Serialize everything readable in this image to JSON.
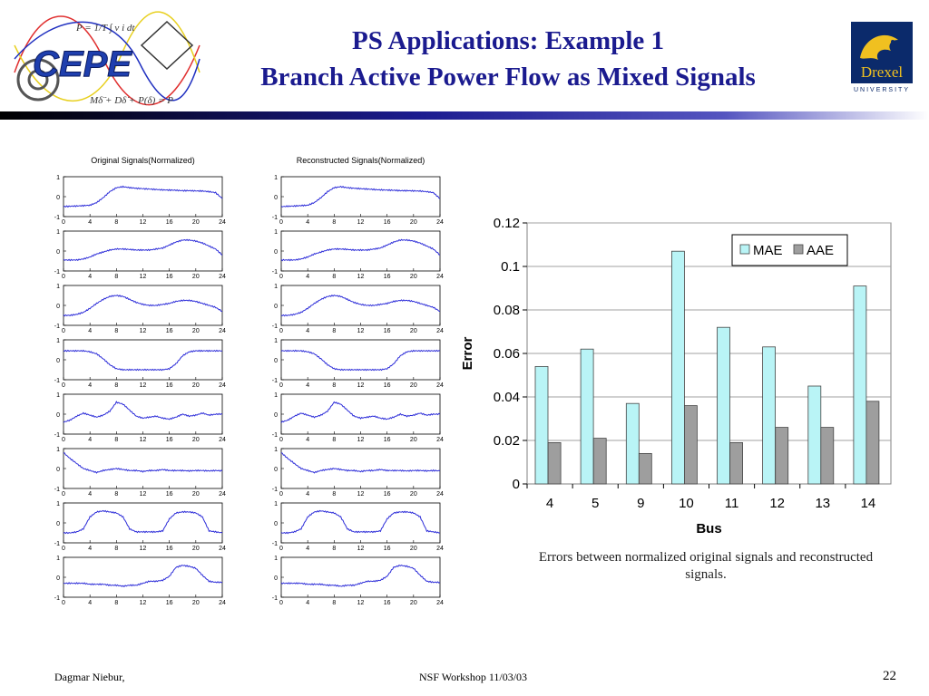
{
  "header": {
    "title_line1": "PS Applications: Example 1",
    "title_line2": "Branch Active Power Flow as Mixed Signals",
    "left_logo": "CEPE",
    "right_logo_name": "Drexel",
    "right_logo_sub": "UNIVERSITY",
    "rule_colors": [
      "#000000",
      "#1b1b8f",
      "#ffffff"
    ]
  },
  "signals": {
    "original_title": "Original Signals(Normalized)",
    "reconstructed_title": "Reconstructed Signals(Normalized)",
    "x_ticks": [
      "0",
      "4",
      "8",
      "12",
      "16",
      "20",
      "24"
    ],
    "y_ticks": [
      "1",
      "0",
      "-1"
    ],
    "line_color": "#2b2bd8",
    "series": [
      [
        -0.5,
        -0.48,
        -0.47,
        -0.45,
        -0.43,
        -0.3,
        -0.05,
        0.25,
        0.45,
        0.5,
        0.45,
        0.42,
        0.4,
        0.38,
        0.36,
        0.34,
        0.33,
        0.32,
        0.3,
        0.3,
        0.29,
        0.28,
        0.25,
        0.2,
        -0.1
      ],
      [
        -0.45,
        -0.45,
        -0.45,
        -0.4,
        -0.3,
        -0.15,
        -0.05,
        0.05,
        0.1,
        0.1,
        0.08,
        0.05,
        0.05,
        0.05,
        0.1,
        0.15,
        0.3,
        0.45,
        0.55,
        0.55,
        0.5,
        0.4,
        0.25,
        0.1,
        -0.2
      ],
      [
        -0.5,
        -0.5,
        -0.45,
        -0.35,
        -0.15,
        0.1,
        0.3,
        0.45,
        0.5,
        0.45,
        0.3,
        0.15,
        0.05,
        0.0,
        0.0,
        0.05,
        0.1,
        0.2,
        0.25,
        0.25,
        0.2,
        0.1,
        0.0,
        -0.1,
        -0.3
      ],
      [
        0.45,
        0.45,
        0.45,
        0.45,
        0.4,
        0.3,
        0.05,
        -0.25,
        -0.45,
        -0.5,
        -0.5,
        -0.5,
        -0.5,
        -0.5,
        -0.5,
        -0.5,
        -0.45,
        -0.2,
        0.2,
        0.4,
        0.45,
        0.45,
        0.45,
        0.45,
        0.45
      ],
      [
        -0.4,
        -0.3,
        -0.1,
        0.05,
        -0.05,
        -0.15,
        -0.05,
        0.15,
        0.6,
        0.5,
        0.2,
        -0.1,
        -0.2,
        -0.15,
        -0.1,
        -0.2,
        -0.25,
        -0.15,
        0.0,
        -0.1,
        -0.05,
        0.05,
        -0.05,
        0.0,
        0.0
      ],
      [
        0.8,
        0.5,
        0.25,
        0.0,
        -0.1,
        -0.2,
        -0.1,
        -0.05,
        0.0,
        -0.05,
        -0.1,
        -0.1,
        -0.15,
        -0.1,
        -0.1,
        -0.05,
        -0.1,
        -0.1,
        -0.1,
        -0.12,
        -0.1,
        -0.1,
        -0.12,
        -0.1,
        -0.12
      ],
      [
        -0.5,
        -0.5,
        -0.45,
        -0.3,
        0.3,
        0.55,
        0.6,
        0.55,
        0.5,
        0.3,
        -0.3,
        -0.45,
        -0.45,
        -0.45,
        -0.45,
        -0.4,
        0.2,
        0.5,
        0.55,
        0.55,
        0.5,
        0.3,
        -0.4,
        -0.45,
        -0.5
      ],
      [
        -0.3,
        -0.3,
        -0.3,
        -0.3,
        -0.35,
        -0.35,
        -0.35,
        -0.4,
        -0.4,
        -0.45,
        -0.4,
        -0.4,
        -0.3,
        -0.2,
        -0.2,
        -0.15,
        0.05,
        0.5,
        0.6,
        0.55,
        0.45,
        0.1,
        -0.2,
        -0.25,
        -0.25
      ]
    ]
  },
  "caption": {
    "line1": "Errors between normalized original signals and reconstructed",
    "line2": "signals."
  },
  "footer": {
    "author": "Dagmar Niebur,",
    "event": "NSF Workshop 11/03/03",
    "page": "22"
  },
  "chart_data": {
    "type": "bar",
    "categories": [
      "4",
      "5",
      "9",
      "10",
      "11",
      "12",
      "13",
      "14"
    ],
    "series": [
      {
        "name": "MAE",
        "values": [
          0.054,
          0.062,
          0.037,
          0.107,
          0.072,
          0.063,
          0.045,
          0.091
        ],
        "color": "#b9f4f6"
      },
      {
        "name": "AAE",
        "values": [
          0.019,
          0.021,
          0.014,
          0.036,
          0.019,
          0.026,
          0.026,
          0.038
        ],
        "color": "#9e9e9e"
      }
    ],
    "xlabel": "Bus",
    "ylabel": "Error",
    "ylim": [
      0,
      0.12
    ],
    "yticks": [
      "0",
      "0.02",
      "0.04",
      "0.06",
      "0.08",
      "0.1",
      "0.12"
    ],
    "grid": true,
    "legend": "top-right",
    "background": "#ffffff",
    "gridline_color": "#a0a0a0"
  }
}
